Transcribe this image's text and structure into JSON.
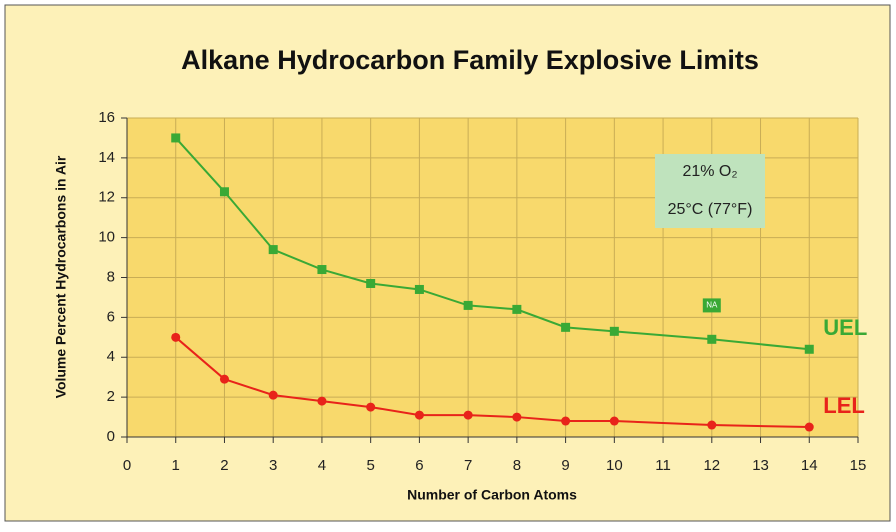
{
  "chart_data": {
    "type": "line",
    "title": "Alkane Hydrocarbon Family Explosive Limits",
    "xlabel": "Number of Carbon Atoms",
    "ylabel": "Volume Percent Hydrocarbons in Air",
    "x": [
      1,
      2,
      3,
      4,
      5,
      6,
      7,
      8,
      9,
      10,
      12,
      14
    ],
    "series": [
      {
        "name": "UEL",
        "color": "#3aa935",
        "marker": "square",
        "values": [
          15,
          12.3,
          9.4,
          8.4,
          7.7,
          7.4,
          6.6,
          6.4,
          5.5,
          5.3,
          4.9,
          4.4
        ]
      },
      {
        "name": "LEL",
        "color": "#e8231a",
        "marker": "circle",
        "values": [
          5,
          2.9,
          2.1,
          1.8,
          1.5,
          1.1,
          1.1,
          1.0,
          0.8,
          0.8,
          0.6,
          0.5
        ]
      }
    ],
    "xlim": [
      0,
      15
    ],
    "xticks": [
      0,
      1,
      2,
      3,
      4,
      5,
      6,
      7,
      8,
      9,
      10,
      11,
      12,
      13,
      14,
      15
    ],
    "ylim": [
      0,
      16
    ],
    "yticks": [
      0,
      2,
      4,
      6,
      8,
      10,
      12,
      14,
      16
    ],
    "grid": true,
    "annotations": [
      {
        "text": "NA",
        "x": 12,
        "y": 6.6
      }
    ],
    "conditions": [
      "21% O₂",
      "25°C (77°F)"
    ]
  }
}
